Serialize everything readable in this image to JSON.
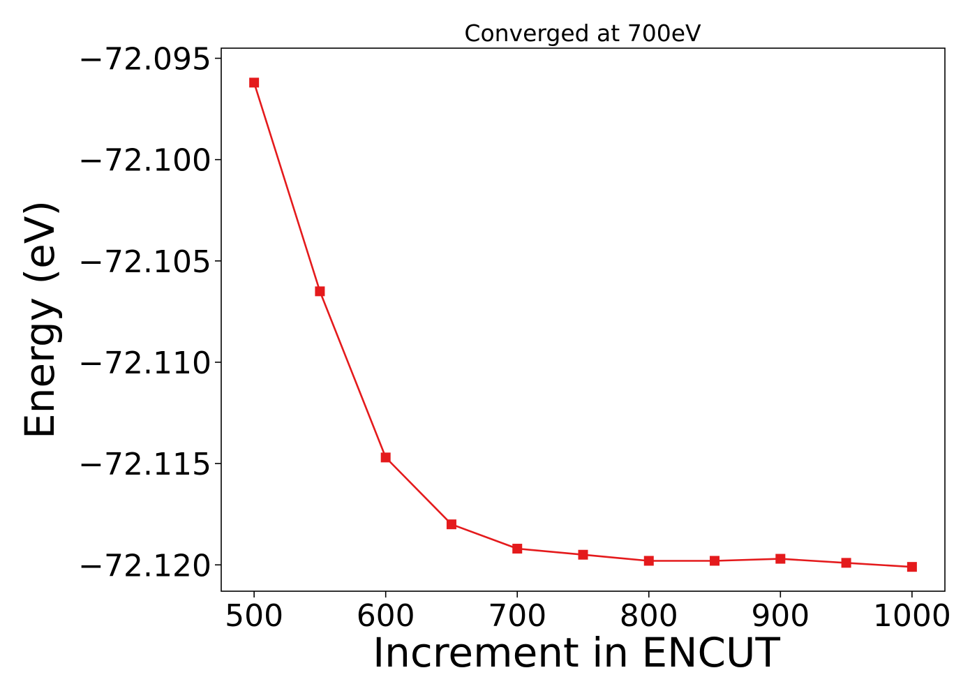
{
  "chart_data": {
    "type": "line",
    "title": "Converged at 700eV",
    "xlabel": "Increment in ENCUT",
    "ylabel": "Energy (eV)",
    "x": [
      500,
      550,
      600,
      650,
      700,
      750,
      800,
      850,
      900,
      950,
      1000
    ],
    "series": [
      {
        "values": [
          -72.0962,
          -72.1065,
          -72.1147,
          -72.118,
          -72.1192,
          -72.1195,
          -72.1198,
          -72.1198,
          -72.1197,
          -72.1199,
          -72.1201
        ],
        "color": "#e41a1c",
        "marker": "square"
      }
    ],
    "xlim": [
      475,
      1025
    ],
    "ylim": [
      -72.1213,
      -72.0945
    ],
    "xticks": [
      500,
      600,
      700,
      800,
      900,
      1000
    ],
    "xtick_labels": [
      "500",
      "600",
      "700",
      "800",
      "900",
      "1000"
    ],
    "yticks": [
      -72.095,
      -72.1,
      -72.105,
      -72.11,
      -72.115,
      -72.12
    ],
    "ytick_labels": [
      "−72.095",
      "−72.100",
      "−72.105",
      "−72.110",
      "−72.115",
      "−72.120"
    ],
    "grid": false,
    "legend": "none"
  }
}
